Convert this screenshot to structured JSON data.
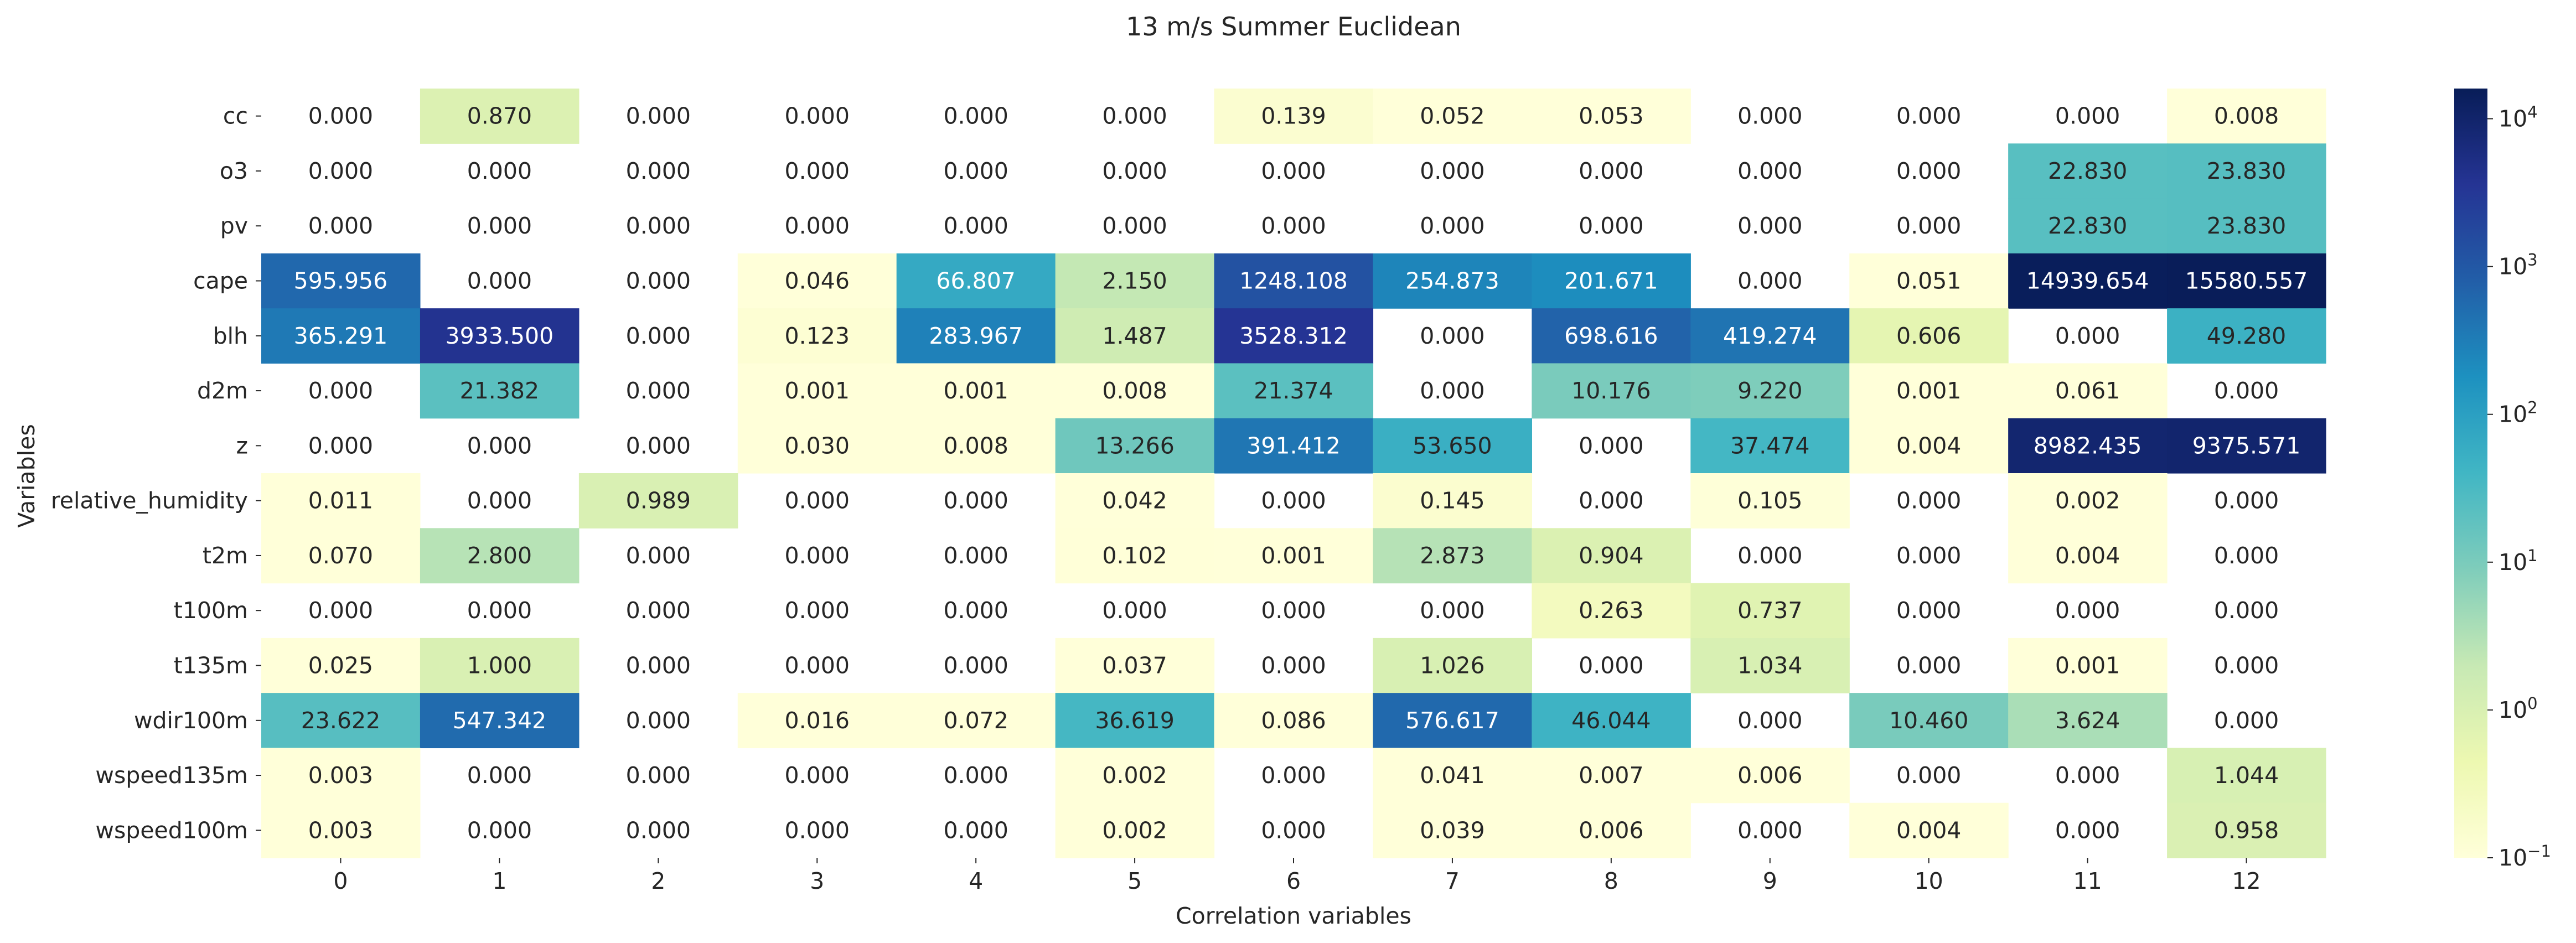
{
  "chart_data": {
    "type": "heatmap",
    "title": "13 m/s Summer Euclidean",
    "xlabel": "Correlation variables",
    "ylabel": "Variables",
    "x_categories": [
      "0",
      "1",
      "2",
      "3",
      "4",
      "5",
      "6",
      "7",
      "8",
      "9",
      "10",
      "11",
      "12"
    ],
    "y_categories": [
      "cc",
      "o3",
      "pv",
      "cape",
      "blh",
      "d2m",
      "z",
      "relative_humidity",
      "t2m",
      "t100m",
      "t135m",
      "wdir100m",
      "wspeed135m",
      "wspeed100m"
    ],
    "values": [
      [
        0.0,
        0.87,
        0.0,
        0.0,
        0.0,
        0.0,
        0.139,
        0.052,
        0.053,
        0.0,
        0.0,
        0.0,
        0.008
      ],
      [
        0.0,
        0.0,
        0.0,
        0.0,
        0.0,
        0.0,
        0.0,
        0.0,
        0.0,
        0.0,
        0.0,
        22.83,
        23.83
      ],
      [
        0.0,
        0.0,
        0.0,
        0.0,
        0.0,
        0.0,
        0.0,
        0.0,
        0.0,
        0.0,
        0.0,
        22.83,
        23.83
      ],
      [
        595.956,
        0.0,
        0.0,
        0.046,
        66.807,
        2.15,
        1248.108,
        254.873,
        201.671,
        0.0,
        0.051,
        14939.654,
        15580.557
      ],
      [
        365.291,
        3933.5,
        0.0,
        0.123,
        283.967,
        1.487,
        3528.312,
        0.0,
        698.616,
        419.274,
        0.606,
        0.0,
        49.28
      ],
      [
        0.0,
        21.382,
        0.0,
        0.001,
        0.001,
        0.008,
        21.374,
        0.0,
        10.176,
        9.22,
        0.001,
        0.061,
        0.0
      ],
      [
        0.0,
        0.0,
        0.0,
        0.03,
        0.008,
        13.266,
        391.412,
        53.65,
        0.0,
        37.474,
        0.004,
        8982.435,
        9375.571
      ],
      [
        0.011,
        0.0,
        0.989,
        0.0,
        0.0,
        0.042,
        0.0,
        0.145,
        0.0,
        0.105,
        0.0,
        0.002,
        0.0
      ],
      [
        0.07,
        2.8,
        0.0,
        0.0,
        0.0,
        0.102,
        0.001,
        2.873,
        0.904,
        0.0,
        0.0,
        0.004,
        0.0
      ],
      [
        0.0,
        0.0,
        0.0,
        0.0,
        0.0,
        0.0,
        0.0,
        0.0,
        0.263,
        0.737,
        0.0,
        0.0,
        0.0
      ],
      [
        0.025,
        1.0,
        0.0,
        0.0,
        0.0,
        0.037,
        0.0,
        1.026,
        0.0,
        1.034,
        0.0,
        0.001,
        0.0
      ],
      [
        23.622,
        547.342,
        0.0,
        0.016,
        0.072,
        36.619,
        0.086,
        576.617,
        46.044,
        0.0,
        10.46,
        3.624,
        0.0
      ],
      [
        0.003,
        0.0,
        0.0,
        0.0,
        0.0,
        0.002,
        0.0,
        0.041,
        0.007,
        0.006,
        0.0,
        0.0,
        1.044
      ],
      [
        0.003,
        0.0,
        0.0,
        0.0,
        0.0,
        0.002,
        0.0,
        0.039,
        0.006,
        0.0,
        0.004,
        0.0,
        0.958
      ]
    ],
    "value_format": "3 decimals",
    "color_scale": "log",
    "colormap": "YlGnBu",
    "zero_cells": "blank (masked)",
    "colorbar_range": [
      0.1,
      16000
    ],
    "colorbar_ticks": [
      {
        "base": "10",
        "exp": "−1",
        "value": 0.1
      },
      {
        "base": "10",
        "exp": "0",
        "value": 1
      },
      {
        "base": "10",
        "exp": "1",
        "value": 10
      },
      {
        "base": "10",
        "exp": "2",
        "value": 100
      },
      {
        "base": "10",
        "exp": "3",
        "value": 1000
      },
      {
        "base": "10",
        "exp": "4",
        "value": 10000
      }
    ],
    "grid": false,
    "colorbar_placement": "right"
  }
}
